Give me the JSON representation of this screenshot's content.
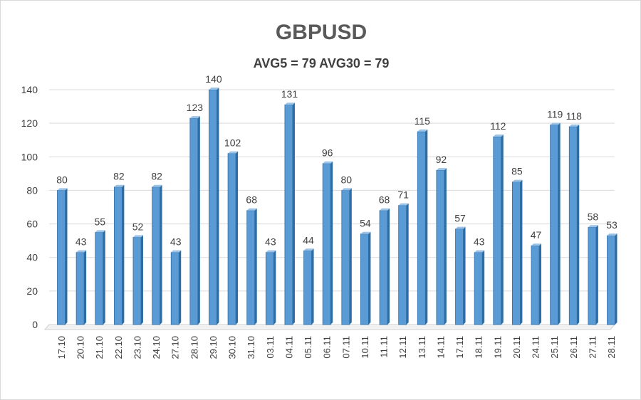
{
  "chart_data": {
    "type": "bar",
    "title": "GBPUSD",
    "subtitle": "AVG5 = 79 AVG30 = 79",
    "categories": [
      "17.10",
      "20.10",
      "21.10",
      "22.10",
      "23.10",
      "24.10",
      "27.10",
      "28.10",
      "29.10",
      "30.10",
      "31.10",
      "03.11",
      "04.11",
      "05.11",
      "06.11",
      "07.11",
      "10.11",
      "11.11",
      "12.11",
      "13.11",
      "14.11",
      "17.11",
      "18.11",
      "19.11",
      "20.11",
      "24.11",
      "25.11",
      "26.11",
      "27.11",
      "28.11"
    ],
    "values": [
      80,
      43,
      55,
      82,
      52,
      82,
      43,
      123,
      140,
      102,
      68,
      43,
      131,
      44,
      96,
      80,
      54,
      68,
      71,
      115,
      92,
      57,
      43,
      112,
      85,
      47,
      119,
      118,
      58,
      53
    ],
    "ylim": [
      0,
      140
    ],
    "yticks": [
      0,
      20,
      40,
      60,
      80,
      100,
      120,
      140
    ],
    "grid": true,
    "bar_color": "#5b9bd5",
    "xlabel": "",
    "ylabel": ""
  }
}
